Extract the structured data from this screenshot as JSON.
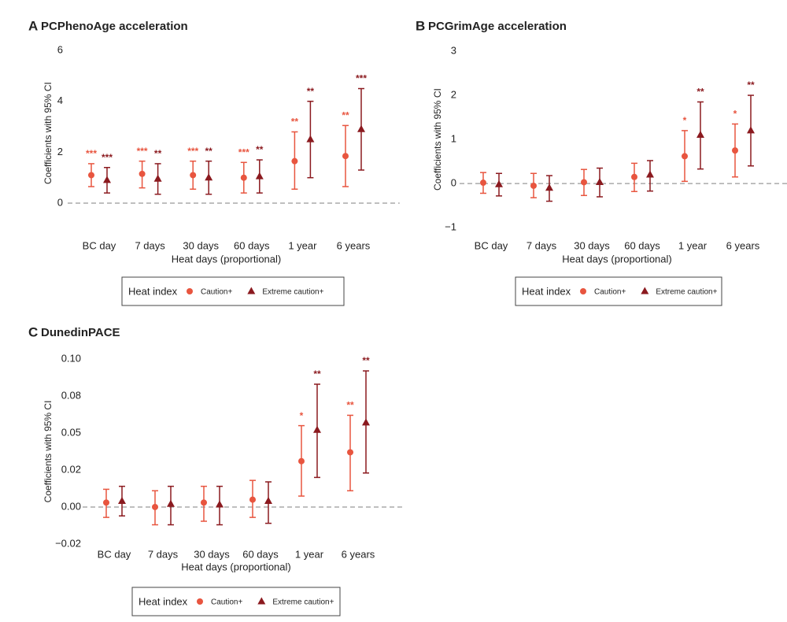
{
  "chart_data": [
    {
      "type": "errorbar",
      "label": "A",
      "title": "PCPhenoAge acceleration",
      "x_label": "Heat days (proportional)",
      "y_label": "Coefficients with 95% CI",
      "legend_title": "Heat index",
      "categories": [
        "BC day",
        "7 days",
        "30 days",
        "60 days",
        "1 year",
        "6 years"
      ],
      "ylim": [
        -0.5,
        6
      ],
      "yticks": [
        0,
        2,
        4,
        6
      ],
      "hline": 0,
      "series": [
        {
          "name": "Caution+",
          "color": "#e8553f",
          "marker": "circle",
          "values": [
            1.1,
            1.15,
            1.1,
            1.0,
            1.65,
            1.85
          ],
          "lower": [
            0.65,
            0.6,
            0.55,
            0.4,
            0.55,
            0.65
          ],
          "upper": [
            1.55,
            1.65,
            1.65,
            1.6,
            2.8,
            3.05
          ],
          "significance": [
            "***",
            "***",
            "***",
            "***",
            "**",
            "**"
          ]
        },
        {
          "name": "Extreme caution+",
          "color": "#8b1a1f",
          "marker": "triangle",
          "values": [
            0.9,
            0.95,
            1.0,
            1.05,
            2.5,
            2.9
          ],
          "lower": [
            0.4,
            0.35,
            0.35,
            0.4,
            1.0,
            1.3
          ],
          "upper": [
            1.4,
            1.55,
            1.65,
            1.7,
            4.0,
            4.5
          ],
          "significance": [
            "***",
            "**",
            "**",
            "**",
            "**",
            "***"
          ]
        }
      ]
    },
    {
      "type": "errorbar",
      "label": "B",
      "title": "PCGrimAge acceleration",
      "x_label": "Heat days (proportional)",
      "y_label": "Coefficients with 95% CI",
      "legend_title": "Heat index",
      "categories": [
        "BC day",
        "7 days",
        "30 days",
        "60 days",
        "1 year",
        "6 years"
      ],
      "ylim": [
        -1.1,
        3.1
      ],
      "yticks": [
        {
          "value": -1,
          "label": "−1"
        },
        0,
        1,
        2,
        3
      ],
      "hline": 0,
      "series": [
        {
          "name": "Caution+",
          "color": "#e8553f",
          "marker": "circle",
          "values": [
            0.02,
            -0.05,
            0.03,
            0.15,
            0.62,
            0.75
          ],
          "lower": [
            -0.22,
            -0.32,
            -0.27,
            -0.18,
            0.05,
            0.15
          ],
          "upper": [
            0.25,
            0.23,
            0.32,
            0.46,
            1.2,
            1.35
          ],
          "significance": [
            null,
            null,
            null,
            null,
            "*",
            "*"
          ]
        },
        {
          "name": "Extreme caution+",
          "color": "#8b1a1f",
          "marker": "triangle",
          "values": [
            -0.02,
            -0.1,
            0.03,
            0.2,
            1.1,
            1.2
          ],
          "lower": [
            -0.28,
            -0.4,
            -0.3,
            -0.17,
            0.33,
            0.4
          ],
          "upper": [
            0.23,
            0.18,
            0.35,
            0.52,
            1.85,
            2.0
          ],
          "significance": [
            null,
            null,
            null,
            null,
            "**",
            "**"
          ]
        }
      ]
    },
    {
      "type": "errorbar",
      "label": "C",
      "title": "DunedinPACE",
      "x_label": "Heat days (proportional)",
      "y_label": "Coefficients with 95% CI",
      "legend_title": "Heat index",
      "categories": [
        "BC day",
        "7 days",
        "30 days",
        "60 days",
        "1 year",
        "6 years"
      ],
      "ylim": [
        -0.028,
        0.103
      ],
      "yticks": [
        {
          "value": -0.025,
          "label": "−0.02"
        },
        {
          "value": 0,
          "label": "0.00"
        },
        {
          "value": 0.025,
          "label": "0.02"
        },
        {
          "value": 0.05,
          "label": "0.05"
        },
        {
          "value": 0.075,
          "label": "0.08"
        },
        {
          "value": 0.1,
          "label": "0.10"
        }
      ],
      "hline": 0,
      "series": [
        {
          "name": "Caution+",
          "color": "#e8553f",
          "marker": "circle",
          "values": [
            0.003,
            0.0,
            0.003,
            0.005,
            0.031,
            0.037
          ],
          "lower": [
            -0.007,
            -0.012,
            -0.0096,
            -0.007,
            0.0074,
            0.011
          ],
          "upper": [
            0.012,
            0.011,
            0.014,
            0.018,
            0.055,
            0.062
          ],
          "significance": [
            null,
            null,
            null,
            null,
            "*",
            "**"
          ]
        },
        {
          "name": "Extreme caution+",
          "color": "#8b1a1f",
          "marker": "triangle",
          "values": [
            0.004,
            0.002,
            0.0016,
            0.004,
            0.052,
            0.057
          ],
          "lower": [
            -0.006,
            -0.012,
            -0.012,
            -0.011,
            0.02,
            0.023
          ],
          "upper": [
            0.014,
            0.014,
            0.014,
            0.017,
            0.083,
            0.092
          ],
          "significance": [
            null,
            null,
            null,
            null,
            "**",
            "**"
          ]
        }
      ]
    }
  ]
}
